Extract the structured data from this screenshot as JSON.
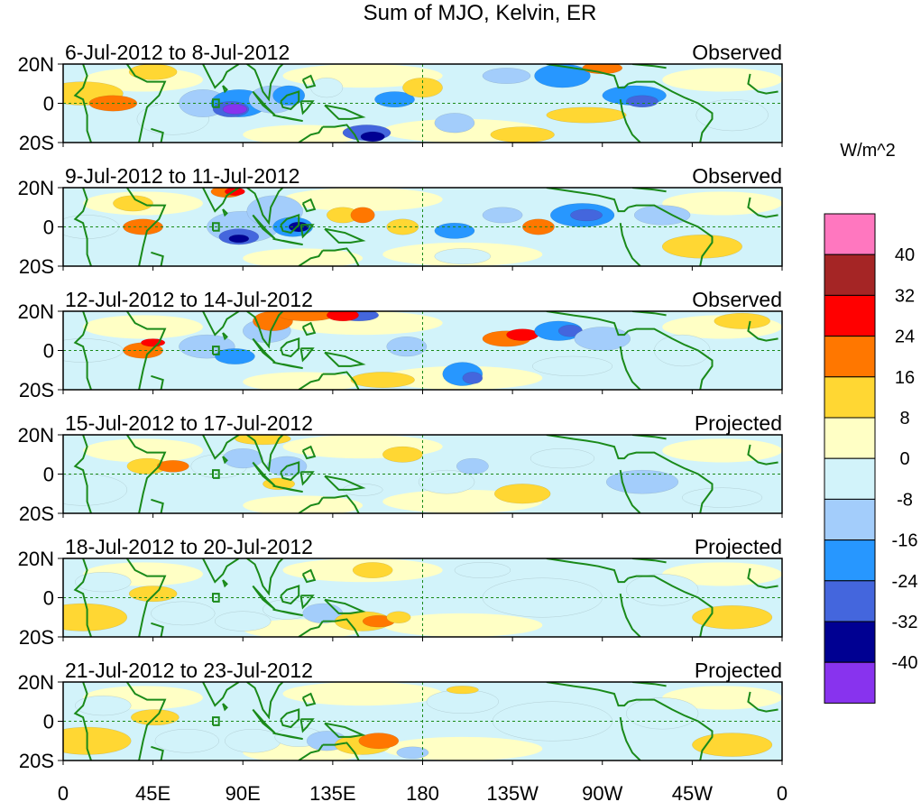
{
  "chart_data": {
    "type": "heatmap",
    "title": "Sum of MJO, Kelvin, ER",
    "units": "W/m^2",
    "x_ticks": [
      "0",
      "45E",
      "90E",
      "135E",
      "180",
      "135W",
      "90W",
      "45W",
      "0"
    ],
    "x_tick_lons": [
      0,
      45,
      90,
      135,
      180,
      225,
      270,
      315,
      360
    ],
    "y_ticks": [
      "20N",
      "0",
      "20S"
    ],
    "y_tick_lats": [
      20,
      0,
      -20
    ],
    "xlim": [
      0,
      360
    ],
    "ylim": [
      -20,
      20
    ],
    "panels": [
      {
        "date_range": "6-Jul-2012 to 8-Jul-2012",
        "type_label": "Observed"
      },
      {
        "date_range": "9-Jul-2012 to 11-Jul-2012",
        "type_label": "Observed"
      },
      {
        "date_range": "12-Jul-2012 to 14-Jul-2012",
        "type_label": "Observed"
      },
      {
        "date_range": "15-Jul-2012 to 17-Jul-2012",
        "type_label": "Projected"
      },
      {
        "date_range": "18-Jul-2012 to 20-Jul-2012",
        "type_label": "Projected"
      },
      {
        "date_range": "21-Jul-2012 to 23-Jul-2012",
        "type_label": "Projected"
      }
    ],
    "colorbar": {
      "boundaries": [
        "40",
        "32",
        "24",
        "16",
        "8",
        "0",
        "-8",
        "-16",
        "-24",
        "-32",
        "-40"
      ],
      "colors": [
        "#ff77bf",
        "#a52525",
        "#ff0000",
        "#ff7700",
        "#ffd733",
        "#ffffc5",
        "#d2f3fa",
        "#a3cdfb",
        "#2797ff",
        "#4466dd",
        "#000092",
        "#8833ee"
      ]
    }
  }
}
